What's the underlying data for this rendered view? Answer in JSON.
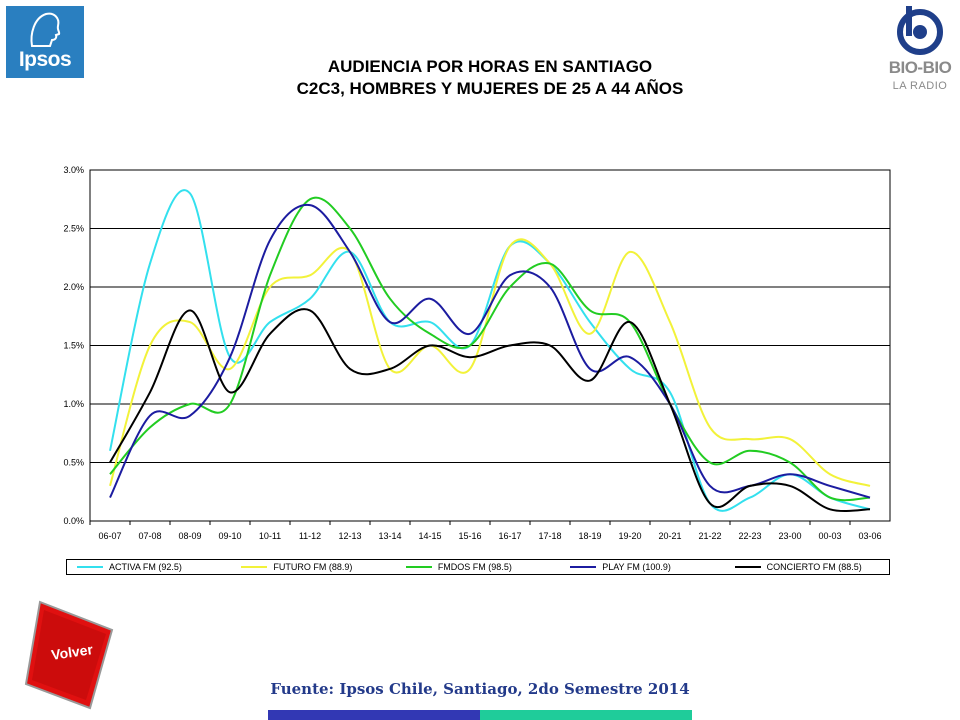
{
  "header": {
    "ipsos_logo": "Ipsos",
    "bio_logo": "BIO-BIO",
    "bio_sub": "LA RADIO"
  },
  "chart_data": {
    "type": "line",
    "title": "AUDIENCIA POR HORAS EN SANTIAGO",
    "subtitle": "C2C3, HOMBRES Y MUJERES DE 25 A 44 AÑOS",
    "categories": [
      "06-07",
      "07-08",
      "08-09",
      "09-10",
      "10-11",
      "11-12",
      "12-13",
      "13-14",
      "14-15",
      "15-16",
      "16-17",
      "17-18",
      "18-19",
      "19-20",
      "20-21",
      "21-22",
      "22-23",
      "23-00",
      "00-03",
      "03-06"
    ],
    "ylim": [
      0,
      3.0
    ],
    "yticks": [
      "0.0%",
      "0.5%",
      "1.0%",
      "1.5%",
      "2.0%",
      "2.5%",
      "3.0%"
    ],
    "grid": true,
    "legend_position": "bottom",
    "series": [
      {
        "name": "ACTIVA FM (92.5)",
        "color": "#33e0ee",
        "values": [
          0.6,
          2.2,
          2.8,
          1.4,
          1.7,
          1.9,
          2.3,
          1.7,
          1.7,
          1.5,
          2.35,
          2.2,
          1.7,
          1.3,
          1.1,
          0.15,
          0.2,
          0.4,
          0.2,
          0.1
        ]
      },
      {
        "name": "FUTURO FM (88.9)",
        "color": "#f2f23a",
        "values": [
          0.3,
          1.5,
          1.7,
          1.3,
          2.0,
          2.1,
          2.3,
          1.3,
          1.5,
          1.3,
          2.35,
          2.2,
          1.6,
          2.3,
          1.7,
          0.8,
          0.7,
          0.7,
          0.4,
          0.3
        ]
      },
      {
        "name": "FMDOS FM (98.5)",
        "color": "#22cc22",
        "values": [
          0.4,
          0.8,
          1.0,
          1.0,
          2.1,
          2.75,
          2.5,
          1.9,
          1.6,
          1.5,
          2.0,
          2.2,
          1.8,
          1.7,
          1.0,
          0.5,
          0.6,
          0.5,
          0.2,
          0.2
        ]
      },
      {
        "name": "PLAY FM (100.9)",
        "color": "#1c1ca0",
        "values": [
          0.2,
          0.9,
          0.9,
          1.4,
          2.4,
          2.7,
          2.3,
          1.7,
          1.9,
          1.6,
          2.1,
          2.0,
          1.3,
          1.4,
          1.0,
          0.3,
          0.3,
          0.4,
          0.3,
          0.2
        ]
      },
      {
        "name": "CONCIERTO FM (88.5)",
        "color": "#000000",
        "values": [
          0.5,
          1.1,
          1.8,
          1.1,
          1.6,
          1.8,
          1.3,
          1.3,
          1.5,
          1.4,
          1.5,
          1.5,
          1.2,
          1.7,
          1.0,
          0.15,
          0.3,
          0.3,
          0.1,
          0.1
        ]
      }
    ]
  },
  "footer": {
    "volver_label": "Volver",
    "source": "Fuente: Ipsos Chile, Santiago, 2do Semestre 2014"
  }
}
